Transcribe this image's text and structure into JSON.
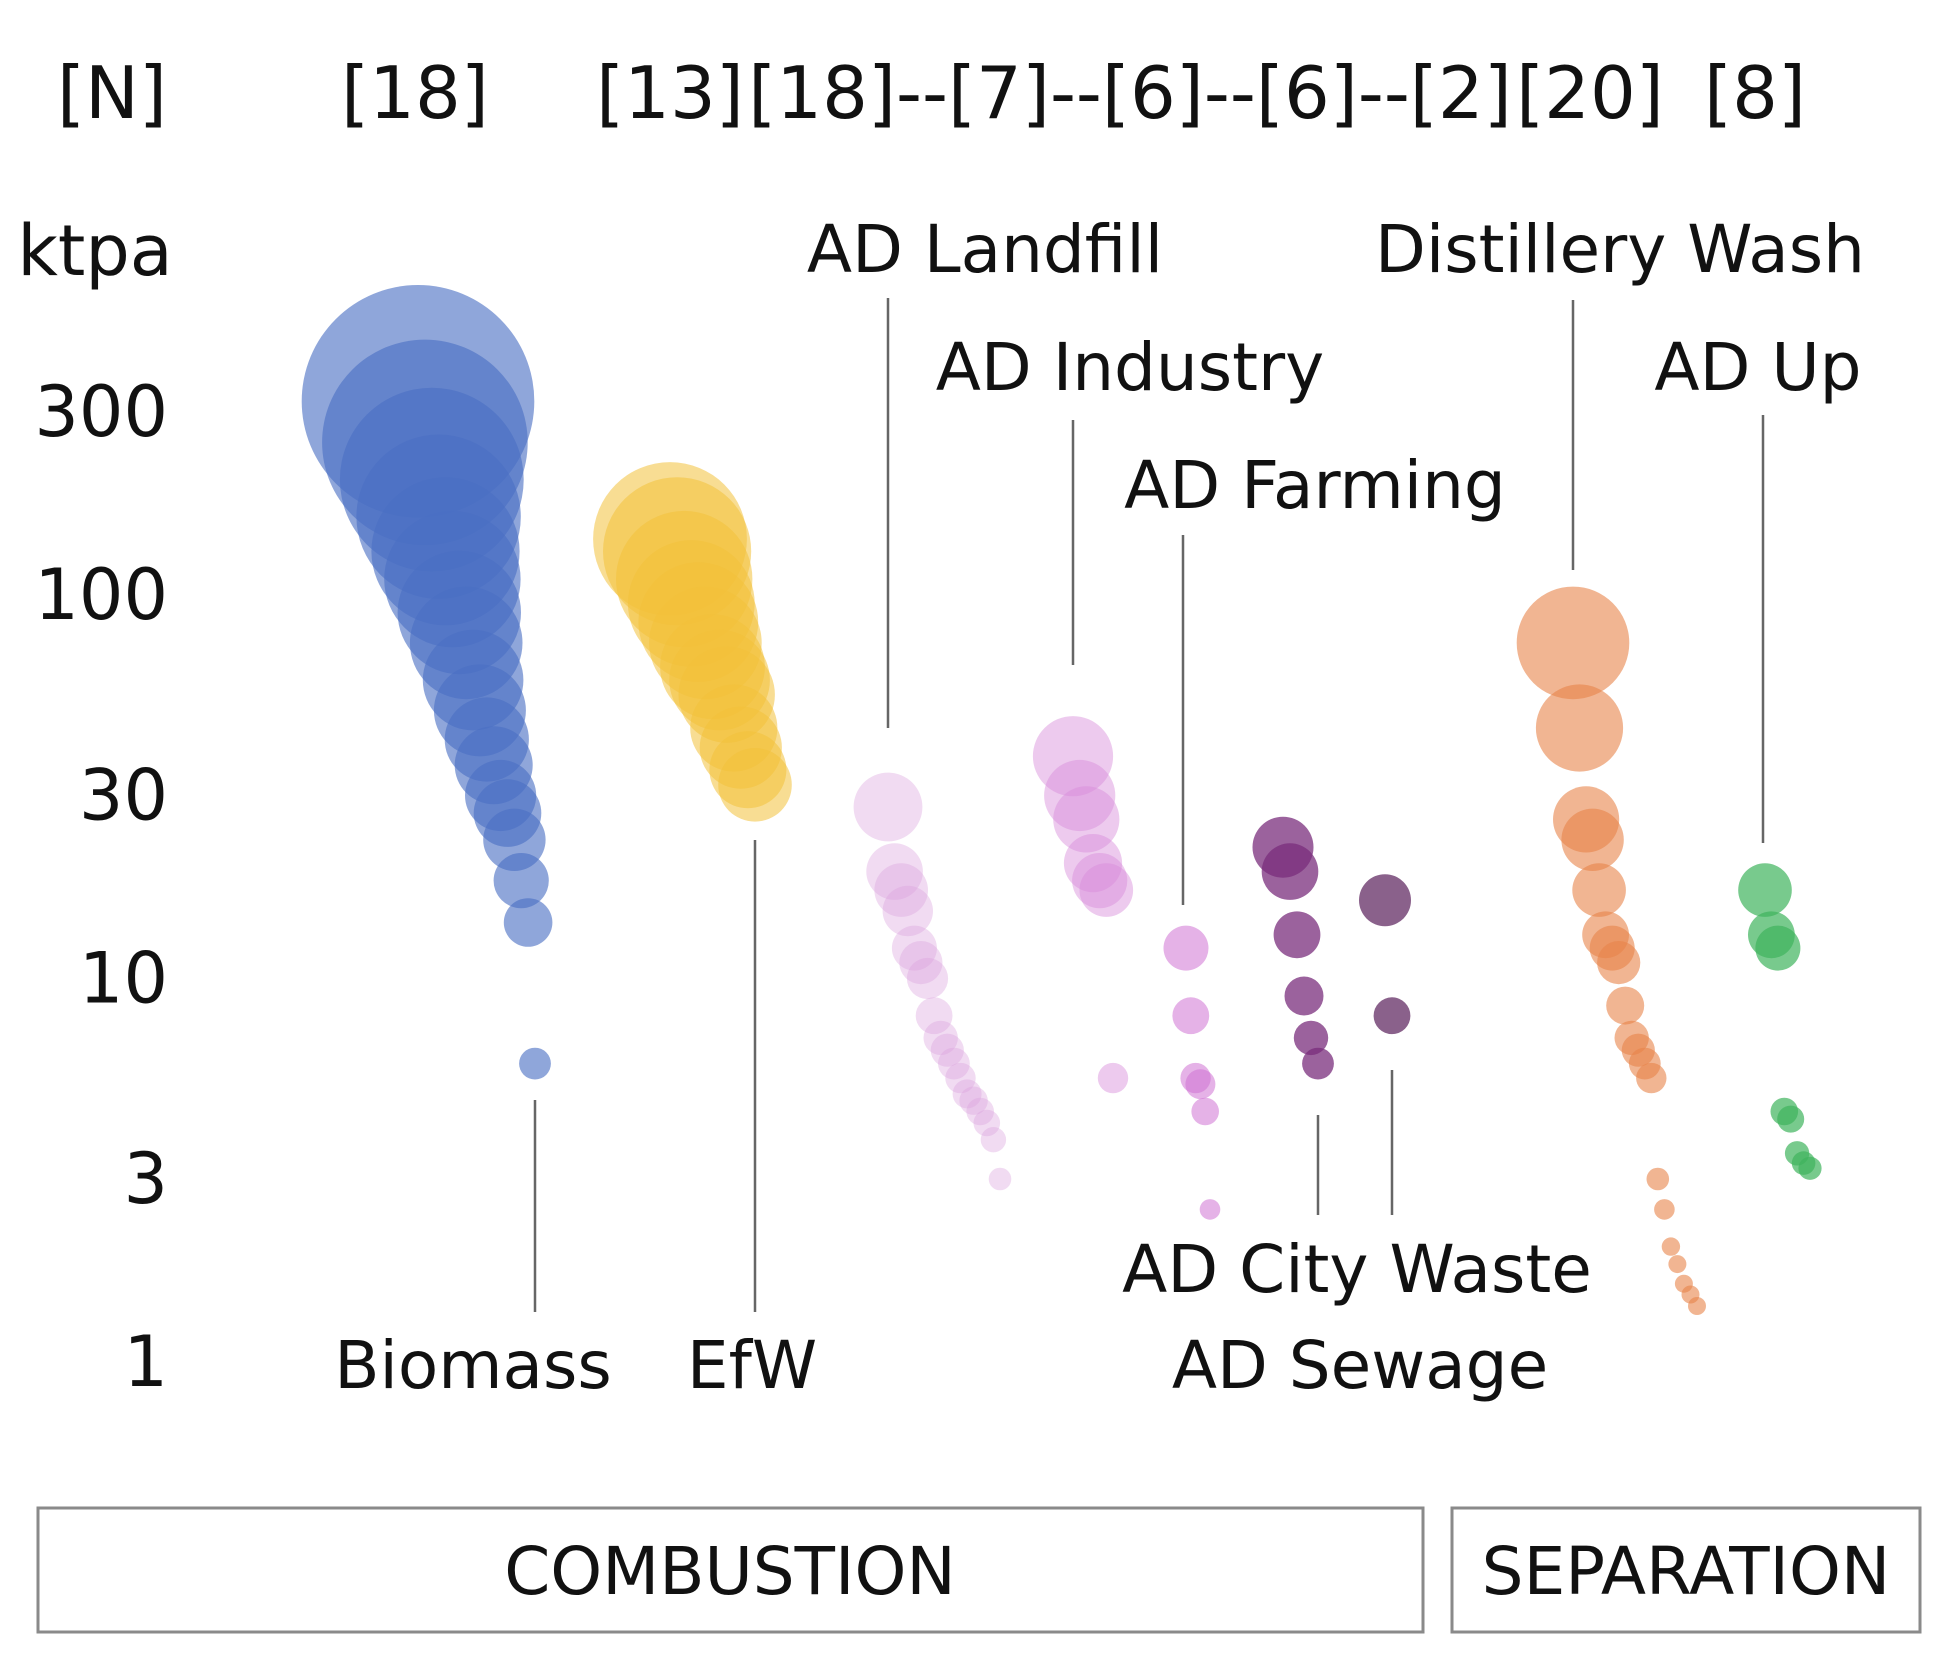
{
  "chart_data": {
    "type": "scatter",
    "subtype": "bubble",
    "y_scale": "log",
    "y_unit_label": "ktpa",
    "count_header": "[N]",
    "count_labels": [
      "[18]",
      "[13]",
      "[18]--[7]--[6]--[6]--[2]",
      "[20]",
      "[8]"
    ],
    "y_ticks": [
      "1",
      "3",
      "10",
      "30",
      "100",
      "300"
    ],
    "ylim": [
      1,
      600
    ],
    "groups": [
      {
        "label": "COMBUSTION"
      },
      {
        "label": "SEPARATION"
      }
    ],
    "series": [
      {
        "name": "Biomass",
        "color": "#4b6fc4",
        "values": [
          320,
          250,
          200,
          160,
          130,
          110,
          90,
          75,
          60,
          50,
          42,
          36,
          30,
          27,
          23,
          18,
          14,
          6
        ]
      },
      {
        "name": "EfW",
        "color": "#f3c13a",
        "values": [
          140,
          130,
          110,
          95,
          85,
          75,
          65,
          60,
          55,
          45,
          40,
          35,
          32
        ]
      },
      {
        "name": "AD Landfill",
        "color": "#dba0dd",
        "values": [
          28,
          19,
          17,
          15,
          12,
          11,
          10,
          8,
          7,
          6.5,
          6,
          5.5,
          5,
          4.8,
          4.5,
          4.2,
          3.8,
          3
        ]
      },
      {
        "name": "AD Industry",
        "color": "#d78ad9",
        "values": [
          38,
          30,
          26,
          20,
          18,
          17,
          5.5
        ]
      },
      {
        "name": "AD Farming",
        "color": "#cf72d3",
        "values": [
          12,
          8,
          5.5,
          5.3,
          4.5,
          2.5
        ]
      },
      {
        "name": "AD City Waste",
        "color": "#7a2d7c",
        "values": [
          22,
          19,
          13,
          9,
          7,
          6
        ]
      },
      {
        "name": "AD Sewage",
        "color": "#6d3a6e",
        "values": [
          16,
          8
        ]
      },
      {
        "name": "Distillery Wash",
        "color": "#e8844a",
        "values": [
          75,
          45,
          26,
          23,
          17,
          13,
          12,
          11,
          8.5,
          7,
          6.5,
          6,
          5.5,
          3,
          2.5,
          2,
          1.8,
          1.6,
          1.5,
          1.4
        ]
      },
      {
        "name": "AD Up",
        "color": "#3fb35c",
        "values": [
          17,
          13,
          12,
          4.5,
          4.3,
          3.5,
          3.3,
          3.2
        ]
      }
    ]
  }
}
